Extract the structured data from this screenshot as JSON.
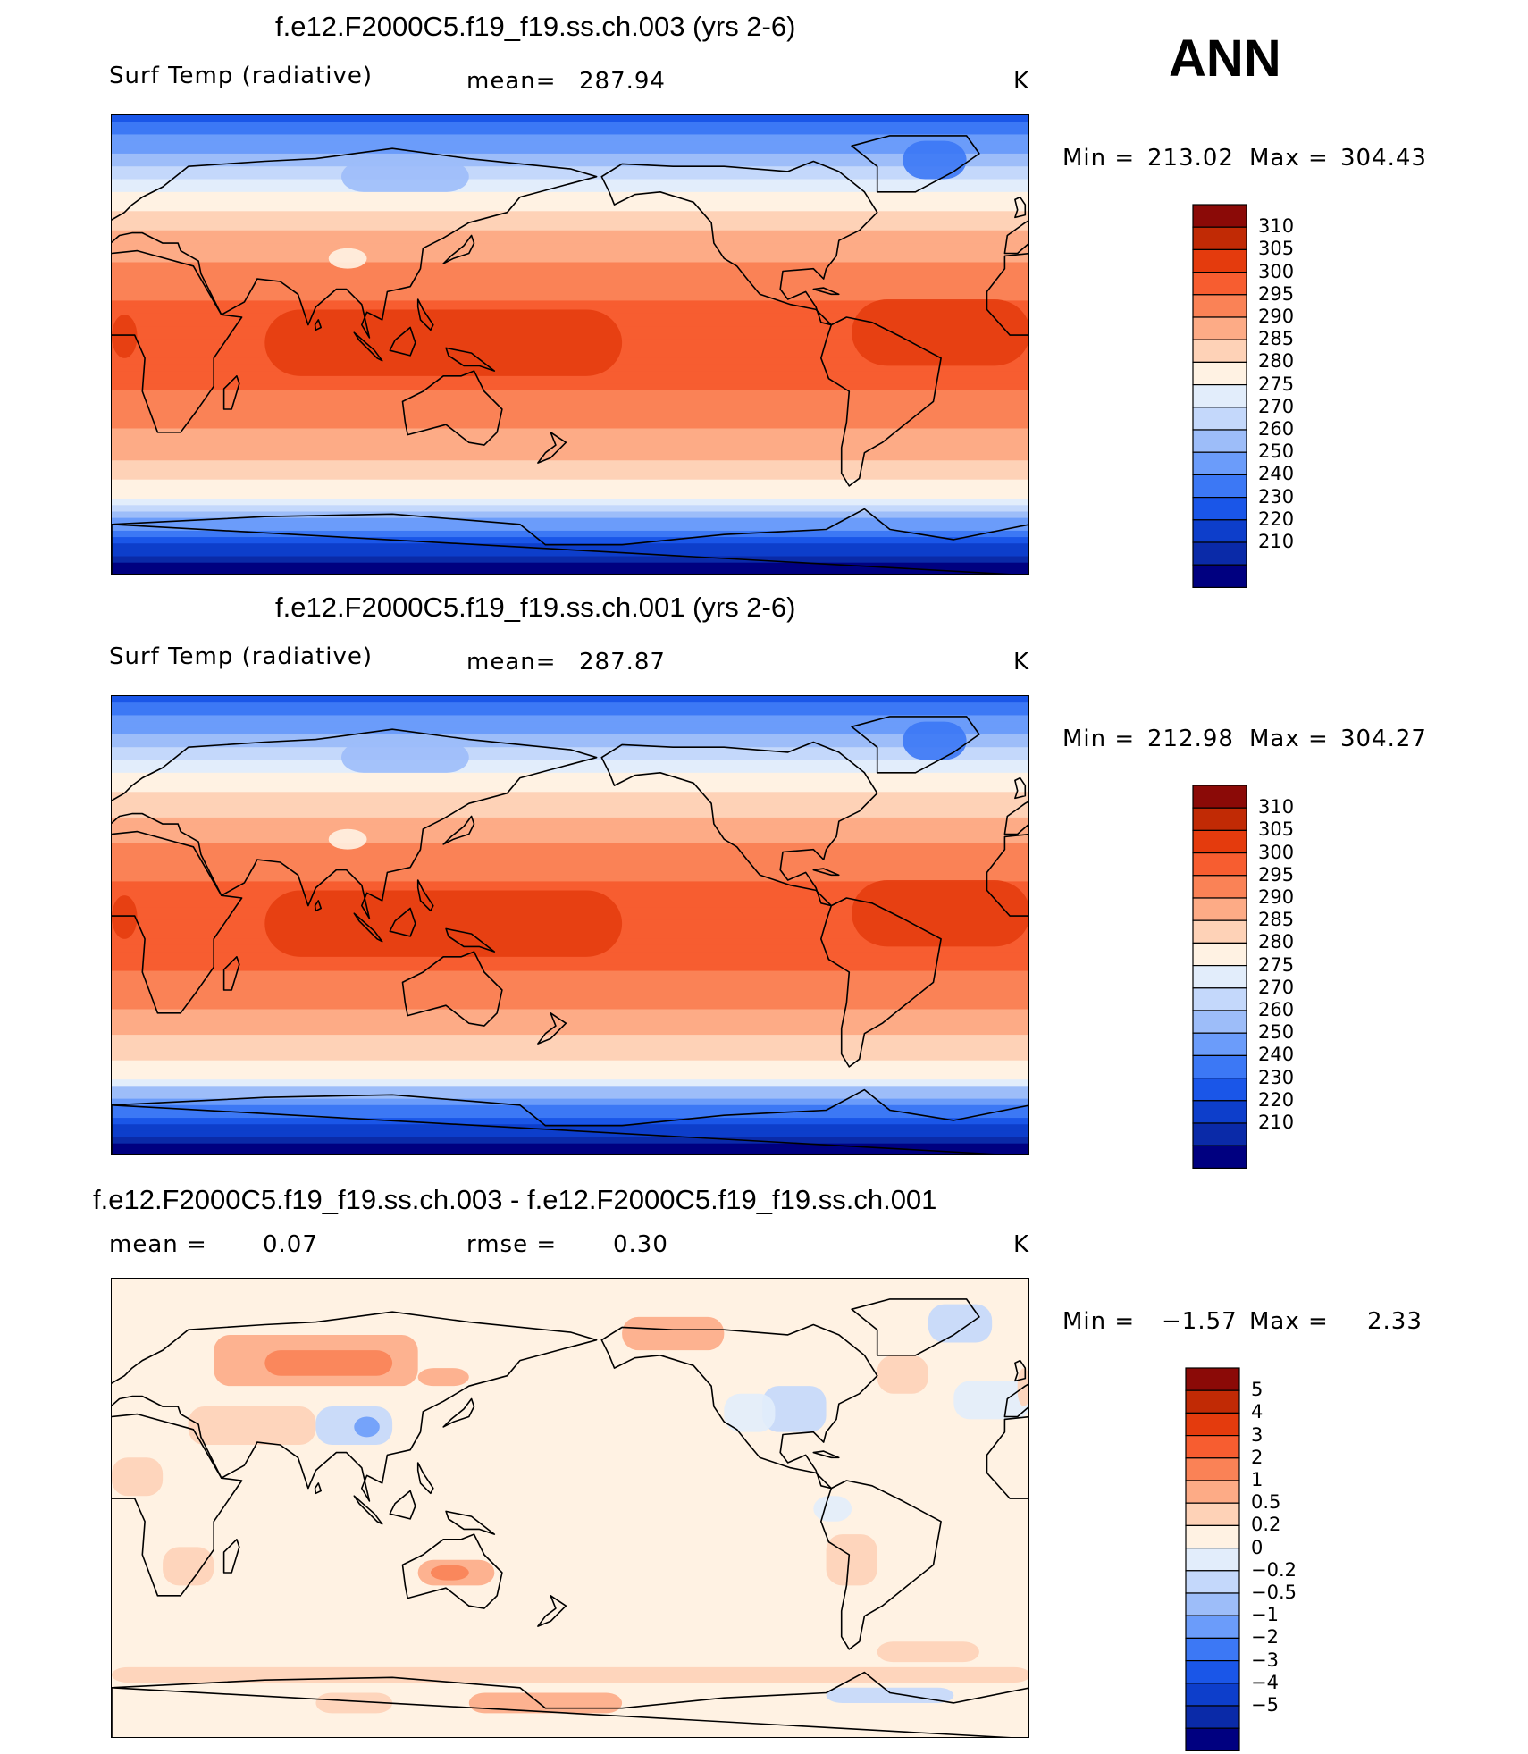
{
  "season": "ANN",
  "colors": {
    "temp_scale": [
      "#000080",
      "#0a2aa8",
      "#0d3ecb",
      "#1a56e8",
      "#3c78f5",
      "#6b9cfa",
      "#9dbdf9",
      "#c4d8fb",
      "#e2edfb",
      "#fff2e3",
      "#fed2b7",
      "#fdab86",
      "#fa8256",
      "#f75d30",
      "#e43b0d",
      "#c12a05",
      "#8b0a07"
    ],
    "diff_scale": [
      "#000080",
      "#0a2aa8",
      "#0d3ecb",
      "#1a56e8",
      "#3c78f5",
      "#6b9cfa",
      "#9dbdf9",
      "#c4d8fb",
      "#e2edfb",
      "#fff2e3",
      "#fed2b7",
      "#fdab86",
      "#fa8256",
      "#f75d30",
      "#e43b0d",
      "#c12a05",
      "#8b0a07"
    ]
  },
  "chart_data": [
    {
      "type": "heatmap",
      "title": "f.e12.F2000C5.f19_f19.ss.ch.003 (yrs 2-6)",
      "variable": "Surf Temp (radiative)",
      "mean_label": "mean=",
      "mean_value": "287.94",
      "units": "K",
      "min_label": "Min =",
      "min_value": "213.02",
      "max_label": "Max =",
      "max_value": "304.43",
      "colorbar_levels": [
        "310",
        "305",
        "300",
        "295",
        "290",
        "285",
        "280",
        "275",
        "270",
        "260",
        "250",
        "240",
        "230",
        "220",
        "210"
      ],
      "field": "temperature"
    },
    {
      "type": "heatmap",
      "title": "f.e12.F2000C5.f19_f19.ss.ch.001 (yrs 2-6)",
      "variable": "Surf Temp (radiative)",
      "mean_label": "mean=",
      "mean_value": "287.87",
      "units": "K",
      "min_label": "Min =",
      "min_value": "212.98",
      "max_label": "Max =",
      "max_value": "304.27",
      "colorbar_levels": [
        "310",
        "305",
        "300",
        "295",
        "290",
        "285",
        "280",
        "275",
        "270",
        "260",
        "250",
        "240",
        "230",
        "220",
        "210"
      ],
      "field": "temperature"
    },
    {
      "type": "heatmap",
      "title": "f.e12.F2000C5.f19_f19.ss.ch.003 - f.e12.F2000C5.f19_f19.ss.ch.001",
      "mean_label": "mean =",
      "mean_value": "0.07",
      "rmse_label": "rmse =",
      "rmse_value": "0.30",
      "units": "K",
      "min_label": "Min =",
      "min_value": "−1.57",
      "max_label": "Max =",
      "max_value": "2.33",
      "colorbar_levels": [
        "5",
        "4",
        "3",
        "2",
        "1",
        "0.5",
        "0.2",
        "0",
        "−0.2",
        "−0.5",
        "−1",
        "−2",
        "−3",
        "−4",
        "−5"
      ],
      "field": "difference"
    }
  ]
}
